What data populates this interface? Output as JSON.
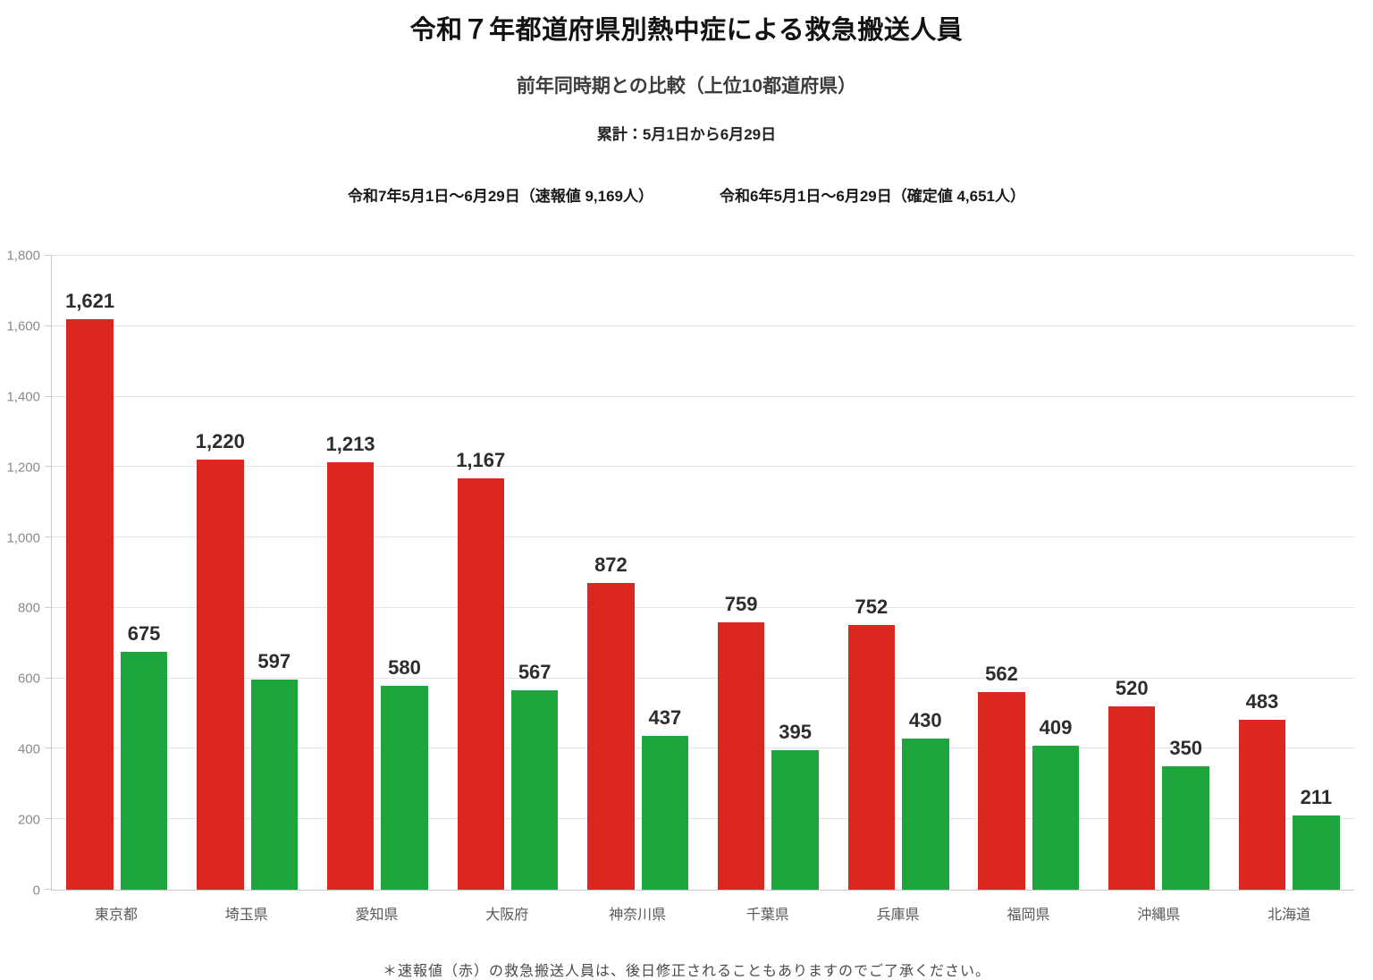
{
  "header": {
    "title": "令和７年都道府県別熱中症による救急搬送人員",
    "subtitle": "前年同時期との比較（上位10都道府県）",
    "period": "累計：5月1日から6月29日"
  },
  "legend": {
    "current_year": "令和7年5月1日～6月29日（速報値 9,169人）",
    "previous_year": "令和6年5月1日～6月29日（確定値 4,651人）"
  },
  "footnote": "＊速報値（赤）の救急搬送人員は、後日修正されることもありますのでご了承ください。",
  "colors": {
    "current_year_bar": "#dc2620",
    "previous_year_bar": "#1fa53e",
    "gridline": "#e4e4e4",
    "axis": "#c9c9c9"
  },
  "chart_data": {
    "type": "bar",
    "title": "令和７年都道府県別熱中症による救急搬送人員",
    "subtitle": "前年同時期との比較（上位10都道府県）",
    "categories": [
      "東京都",
      "埼玉県",
      "愛知県",
      "大阪府",
      "神奈川県",
      "千葉県",
      "兵庫県",
      "福岡県",
      "沖縄県",
      "北海道"
    ],
    "series": [
      {
        "name": "令和7年5月1日～6月29日（速報値 9,169人）",
        "color": "#dc2620",
        "values": [
          1621,
          1220,
          1213,
          1167,
          872,
          759,
          752,
          562,
          520,
          483
        ]
      },
      {
        "name": "令和6年5月1日～6月29日（確定値 4,651人）",
        "color": "#1fa53e",
        "values": [
          675,
          597,
          580,
          567,
          437,
          395,
          430,
          409,
          350,
          211
        ]
      }
    ],
    "xlabel": "",
    "ylabel": "",
    "ylim": [
      0,
      1800
    ],
    "ytick_interval": 200,
    "grid": true,
    "value_labels": true,
    "legend_position": "top"
  }
}
